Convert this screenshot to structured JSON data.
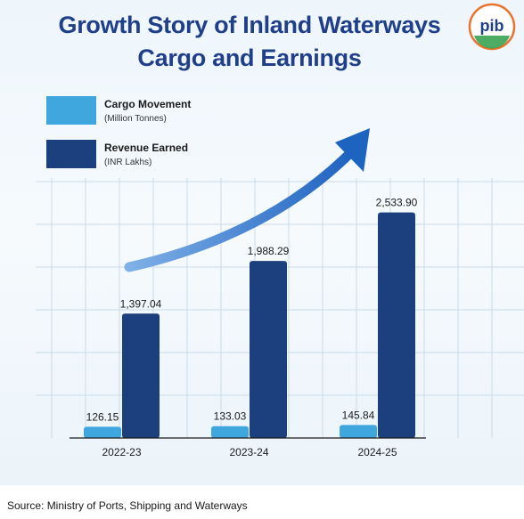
{
  "chart_data": {
    "type": "bar",
    "title_line1": "Growth Story of Inland Waterways",
    "title_line2": "Cargo and Earnings",
    "categories": [
      "2022-23",
      "2023-24",
      "2024-25"
    ],
    "series": [
      {
        "name": "Cargo Movement",
        "unit": "(Million Tonnes)",
        "color": "#3fa7de",
        "values": [
          126.15,
          133.03,
          145.84
        ],
        "labels": [
          "126.15",
          "133.03",
          "145.84"
        ]
      },
      {
        "name": "Revenue Earned",
        "unit": "(INR Lakhs)",
        "color": "#1c3f7e",
        "values": [
          1397.04,
          1988.29,
          2533.9
        ],
        "labels": [
          "1,397.04",
          "1,988.29",
          "2,533.90"
        ]
      }
    ],
    "ylim": [
      0,
      2800
    ],
    "grid": true,
    "legend_position": "top-left"
  },
  "source_text": "Source: Ministry of Ports, Shipping and Waterways",
  "logo": {
    "text": "pib",
    "icon": "pib-logo-icon"
  },
  "colors": {
    "title": "#1f3f8a",
    "arrow": "#1d63c0"
  }
}
